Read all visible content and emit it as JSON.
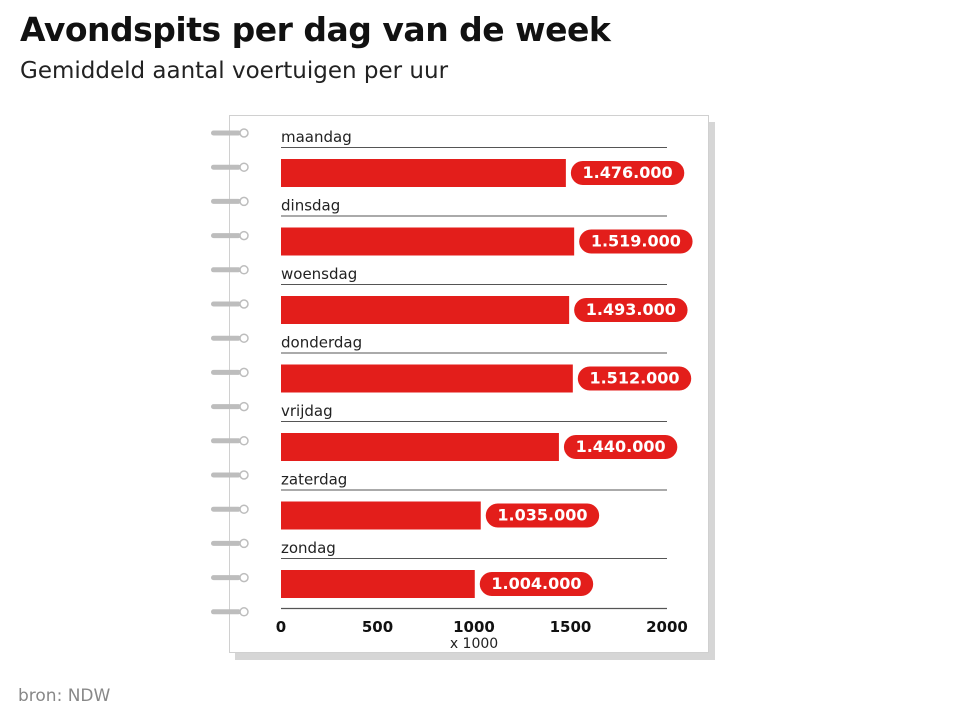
{
  "title": "Avondspits per dag van de week",
  "subtitle": "Gemiddeld aantal voertuigen per uur",
  "source": "bron: NDW",
  "colors": {
    "bar": "#e31e1b",
    "label_bg": "#e31e1b",
    "label_text": "#ffffff",
    "rule": "#555555"
  },
  "chart_data": {
    "type": "bar",
    "orientation": "horizontal",
    "categories": [
      "maandag",
      "dinsdag",
      "woensdag",
      "donderdag",
      "vrijdag",
      "zaterdag",
      "zondag"
    ],
    "values": [
      1476,
      1519,
      1493,
      1512,
      1440,
      1035,
      1004
    ],
    "data_labels": [
      "1.476.000",
      "1.519.000",
      "1.493.000",
      "1.512.000",
      "1.440.000",
      "1.035.000",
      "1.004.000"
    ],
    "x_ticks": [
      0,
      500,
      1000,
      1500,
      2000
    ],
    "x_tick_labels": [
      "0",
      "500",
      "1000",
      "1500",
      "2000"
    ],
    "xlabel": "x 1000",
    "xlim": [
      0,
      2000
    ],
    "grid": false,
    "legend": "none"
  }
}
